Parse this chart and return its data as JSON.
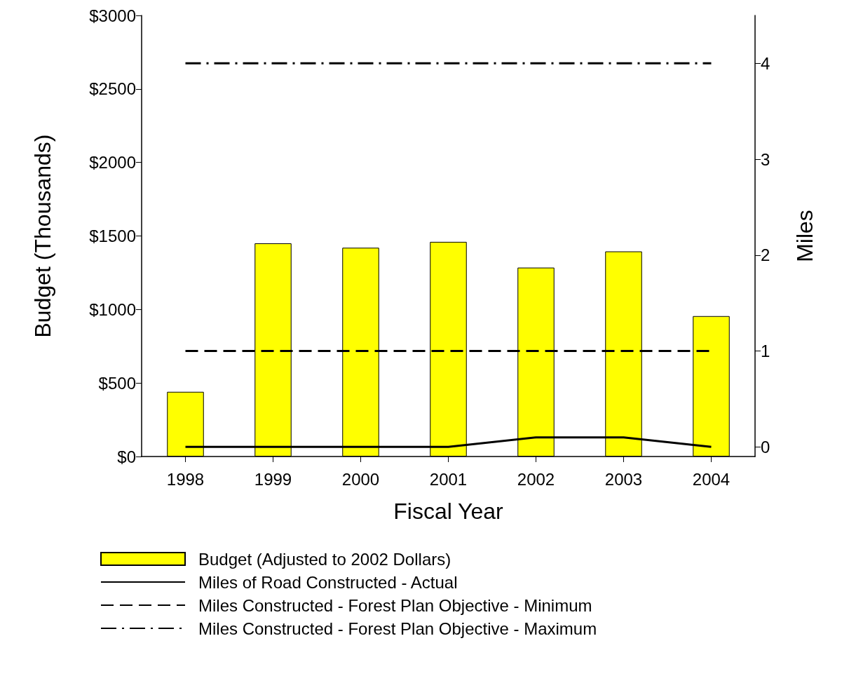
{
  "chart_data": {
    "type": "bar",
    "xlabel": "Fiscal Year",
    "ylabel": "Budget (Thousands)",
    "y2label": "Miles",
    "categories": [
      "1998",
      "1999",
      "2000",
      "2001",
      "2002",
      "2003",
      "2004"
    ],
    "series": [
      {
        "name": "Budget (Adjusted to 2002 Dollars)",
        "color": "#ffff00",
        "values": [
          440,
          1450,
          1420,
          1460,
          1285,
          1395,
          955
        ]
      },
      {
        "name": "Miles of Road Constructed - Actual",
        "type": "line",
        "axis": "y2",
        "color": "#000000",
        "line_style": "solid",
        "values": [
          0,
          0,
          0,
          0,
          0.1,
          0.1,
          0
        ]
      },
      {
        "name": "Miles Constructed - Forest Plan Objective - Minimum",
        "type": "line",
        "axis": "y2",
        "color": "#000000",
        "line_style": "dashed",
        "values": [
          1,
          1,
          1,
          1,
          1,
          1,
          1
        ]
      },
      {
        "name": "Miles Constructed - Forest Plan Objective - Maximum",
        "type": "line",
        "axis": "y2",
        "color": "#000000",
        "line_style": "dashdot",
        "values": [
          4,
          4,
          4,
          4,
          4,
          4,
          4
        ]
      }
    ],
    "ylim": [
      0,
      3000
    ],
    "yticks": [
      {
        "value": 0,
        "label": "$0"
      },
      {
        "value": 500,
        "label": "$500"
      },
      {
        "value": 1000,
        "label": "$1000"
      },
      {
        "value": 1500,
        "label": "$1500"
      },
      {
        "value": 2000,
        "label": "$2000"
      },
      {
        "value": 2500,
        "label": "$2500"
      },
      {
        "value": 3000,
        "label": "$3000"
      }
    ],
    "y2lim": [
      -0.1,
      4.5
    ],
    "y2ticks": [
      0,
      1,
      2,
      3,
      4
    ],
    "marker": "none",
    "grid": false,
    "legend": "bottom"
  }
}
